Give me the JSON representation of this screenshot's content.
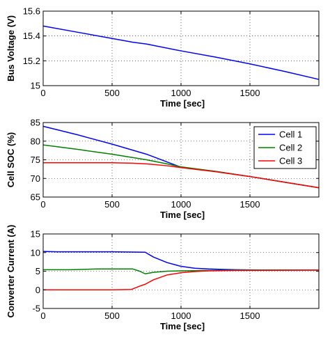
{
  "chart_data": [
    {
      "type": "line",
      "xlabel": "Time [sec]",
      "ylabel": "Bus Voltage (V)",
      "xlim": [
        0,
        2000
      ],
      "ylim": [
        15,
        15.6
      ],
      "xticks": [
        0,
        500,
        1000,
        1500
      ],
      "yticks": [
        15,
        15.2,
        15.4,
        15.6
      ],
      "ytick_labels": [
        "15",
        "15.2",
        "15.4",
        "15.6"
      ],
      "grid": true,
      "series": [
        {
          "color": "#0000ff",
          "x": [
            0,
            250,
            500,
            650,
            750,
            1000,
            1250,
            1500,
            1750,
            2000
          ],
          "y": [
            15.48,
            15.43,
            15.38,
            15.35,
            15.335,
            15.28,
            15.23,
            15.175,
            15.115,
            15.05
          ]
        }
      ]
    },
    {
      "type": "line",
      "xlabel": "Time [sec]",
      "ylabel": "Cell SOC (%)",
      "xlim": [
        0,
        2000
      ],
      "ylim": [
        65,
        85
      ],
      "xticks": [
        0,
        500,
        1000,
        1500
      ],
      "yticks": [
        65,
        70,
        75,
        80,
        85
      ],
      "ytick_labels": [
        "65",
        "70",
        "75",
        "80",
        "85"
      ],
      "grid": true,
      "legend": "top-right",
      "series": [
        {
          "name": "Cell 1",
          "color": "#0000ff",
          "x": [
            0,
            250,
            500,
            750,
            900,
            1000,
            1250,
            1500,
            1750,
            2000
          ],
          "y": [
            84,
            81.7,
            79.2,
            76.5,
            74.4,
            73.0,
            71.9,
            70.5,
            69.0,
            67.5
          ]
        },
        {
          "name": "Cell 2",
          "color": "#008000",
          "x": [
            0,
            250,
            500,
            750,
            900,
            1000,
            1250,
            1500,
            1750,
            2000
          ],
          "y": [
            79,
            77.8,
            76.5,
            75.0,
            73.9,
            73.1,
            71.9,
            70.5,
            69.0,
            67.5
          ]
        },
        {
          "name": "Cell 3",
          "color": "#ff0000",
          "x": [
            0,
            250,
            500,
            650,
            750,
            900,
            1000,
            1250,
            1500,
            1750,
            2000
          ],
          "y": [
            74.2,
            74.2,
            74.2,
            74.1,
            73.9,
            73.4,
            72.9,
            71.8,
            70.5,
            69.0,
            67.5
          ]
        }
      ]
    },
    {
      "type": "line",
      "xlabel": "Time [sec]",
      "ylabel": "Converter Current (A)",
      "xlim": [
        0,
        2000
      ],
      "ylim": [
        -5,
        15
      ],
      "xticks": [
        0,
        500,
        1000,
        1500
      ],
      "yticks": [
        -5,
        0,
        5,
        10,
        15
      ],
      "ytick_labels": [
        "-5",
        "0",
        "5",
        "10",
        "15"
      ],
      "grid": true,
      "series": [
        {
          "color": "#0000ff",
          "x": [
            0,
            100,
            300,
            500,
            740,
            800,
            900,
            1000,
            1100,
            1200,
            1300,
            1400,
            1600,
            2000
          ],
          "y": [
            10.3,
            10.2,
            10.2,
            10.2,
            10.1,
            8.8,
            7.3,
            6.3,
            5.8,
            5.6,
            5.5,
            5.4,
            5.3,
            5.3
          ]
        },
        {
          "color": "#008000",
          "x": [
            0,
            200,
            400,
            650,
            700,
            740,
            800,
            900,
            1000,
            1200,
            1400,
            2000
          ],
          "y": [
            5.4,
            5.4,
            5.6,
            5.6,
            5.0,
            4.3,
            4.7,
            5.0,
            5.1,
            5.2,
            5.3,
            5.3
          ]
        },
        {
          "color": "#ff0000",
          "x": [
            0,
            300,
            500,
            640,
            700,
            740,
            800,
            900,
            1000,
            1100,
            1200,
            1400,
            2000
          ],
          "y": [
            0.0,
            0.0,
            0.0,
            0.1,
            1.0,
            1.5,
            2.7,
            4.0,
            4.6,
            4.9,
            5.1,
            5.2,
            5.3
          ]
        }
      ]
    }
  ]
}
